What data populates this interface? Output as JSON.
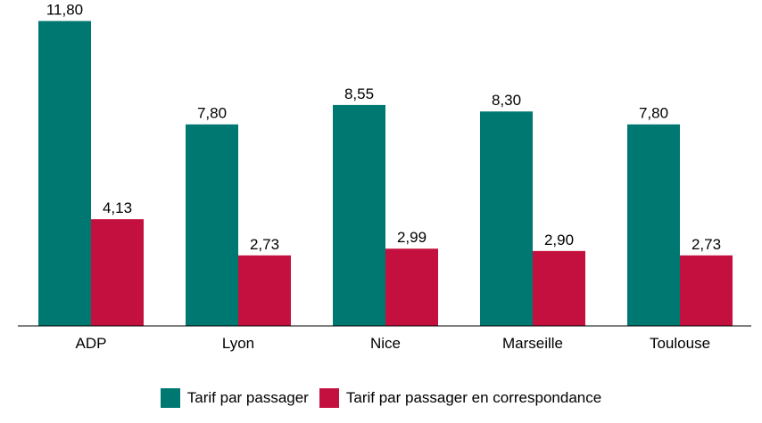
{
  "chart_data": {
    "type": "bar",
    "categories": [
      "ADP",
      "Lyon",
      "Nice",
      "Marseille",
      "Toulouse"
    ],
    "series": [
      {
        "name": "Tarif par passager",
        "values": [
          11.8,
          7.8,
          8.55,
          8.3,
          7.8
        ],
        "labels": [
          "11,80",
          "7,80",
          "8,55",
          "8,30",
          "7,80"
        ],
        "color": "#007872"
      },
      {
        "name": "Tarif par passager en correspondance",
        "values": [
          4.13,
          2.73,
          2.99,
          2.9,
          2.73
        ],
        "labels": [
          "4,13",
          "2,73",
          "2,99",
          "2,90",
          "2,73"
        ],
        "color": "#C4103E"
      }
    ],
    "ylim": [
      0,
      12.2
    ],
    "grid": false,
    "legend_position": "bottom",
    "data_labels": true
  }
}
